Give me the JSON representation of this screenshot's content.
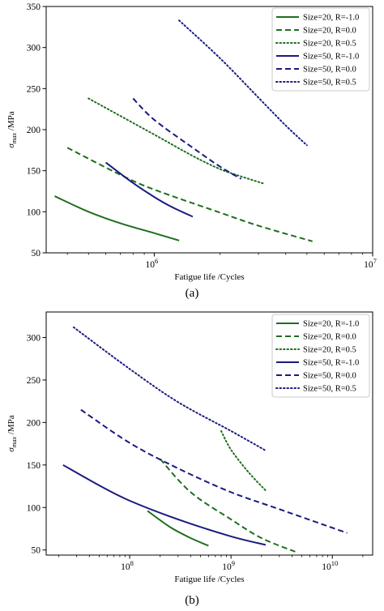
{
  "colors": {
    "green": "#1f6e1f",
    "navy": "#1a1a80"
  },
  "chart_data": [
    {
      "type": "line",
      "caption": "(a)",
      "xlabel": "Fatigue life /Cycles",
      "ylabel_main": "σ",
      "ylabel_sub": "max",
      "ylabel_unit": " /MPa",
      "xscale": "log",
      "xlim": [
        320000,
        10000000
      ],
      "ylim": [
        50,
        350
      ],
      "xticks": [
        {
          "v": 1000000,
          "base": "10",
          "exp": "6"
        },
        {
          "v": 10000000,
          "base": "10",
          "exp": "7"
        }
      ],
      "yticks": [
        50,
        100,
        150,
        200,
        250,
        300,
        350
      ],
      "legend": "top-right",
      "series": [
        {
          "name": "Size=20, R=-1.0",
          "color": "green",
          "style": "solid",
          "x": [
            350000,
            500000,
            700000,
            1000000,
            1300000
          ],
          "y": [
            119,
            100,
            86,
            74,
            65
          ]
        },
        {
          "name": "Size=20, R=0.0",
          "color": "green",
          "style": "dashed",
          "x": [
            400000,
            700000,
            1000000,
            2000000,
            3000000,
            5300000
          ],
          "y": [
            178,
            145,
            127,
            99,
            83,
            64
          ]
        },
        {
          "name": "Size=20, R=0.5",
          "color": "green",
          "style": "dotted",
          "x": [
            500000,
            1000000,
            1500000,
            2000000,
            2500000,
            3200000
          ],
          "y": [
            238,
            194,
            168,
            152,
            143,
            134
          ]
        },
        {
          "name": "Size=50, R=-1.0",
          "color": "navy",
          "style": "solid",
          "x": [
            600000,
            800000,
            1000000,
            1200000,
            1500000
          ],
          "y": [
            160,
            135,
            118,
            106,
            94
          ]
        },
        {
          "name": "Size=50, R=0.0",
          "color": "navy",
          "style": "dashed",
          "x": [
            800000,
            1000000,
            1500000,
            2000000,
            2500000
          ],
          "y": [
            238,
            212,
            178,
            155,
            140
          ]
        },
        {
          "name": "Size=50, R=0.5",
          "color": "navy",
          "style": "dotted",
          "x": [
            1300000,
            2000000,
            3000000,
            4000000,
            5000000
          ],
          "y": [
            333,
            287,
            239,
            205,
            181
          ]
        }
      ]
    },
    {
      "type": "line",
      "caption": "(b)",
      "xlabel": "Fatigue life /Cycles",
      "ylabel_main": "σ",
      "ylabel_sub": "max",
      "ylabel_unit": " /MPa",
      "xscale": "log",
      "xlim": [
        15000000,
        25000000000
      ],
      "ylim": [
        44,
        330
      ],
      "xticks": [
        {
          "v": 100000000,
          "base": "10",
          "exp": "8"
        },
        {
          "v": 1000000000,
          "base": "10",
          "exp": "9"
        },
        {
          "v": 10000000000,
          "base": "10",
          "exp": "10"
        }
      ],
      "yticks": [
        50,
        100,
        150,
        200,
        250,
        300
      ],
      "legend": "top-right",
      "series": [
        {
          "name": "Size=20, R=-1.0",
          "color": "green",
          "style": "solid",
          "x": [
            150000000,
            250000000,
            400000000,
            600000000
          ],
          "y": [
            96,
            77,
            64,
            55
          ]
        },
        {
          "name": "Size=20, R=0.0",
          "color": "green",
          "style": "dashed",
          "x": [
            200000000,
            400000000,
            1000000000,
            2000000000,
            4300000000
          ],
          "y": [
            157,
            118,
            86,
            64,
            48
          ]
        },
        {
          "name": "Size=20, R=0.5",
          "color": "green",
          "style": "dotted",
          "x": [
            800000000,
            1000000000,
            1500000000,
            2200000000
          ],
          "y": [
            190,
            168,
            141,
            120
          ]
        },
        {
          "name": "Size=50, R=-1.0",
          "color": "navy",
          "style": "solid",
          "x": [
            22000000,
            50000000,
            100000000,
            300000000,
            1000000000,
            2200000000
          ],
          "y": [
            150,
            126,
            108,
            86,
            66,
            56
          ]
        },
        {
          "name": "Size=50, R=0.0",
          "color": "navy",
          "style": "dashed",
          "x": [
            33000000,
            100000000,
            300000000,
            1000000000,
            3000000000,
            14000000000
          ],
          "y": [
            215,
            176,
            146,
            118,
            98,
            70
          ]
        },
        {
          "name": "Size=50, R=0.5",
          "color": "navy",
          "style": "dotted",
          "x": [
            28000000,
            100000000,
            300000000,
            1000000000,
            2200000000
          ],
          "y": [
            312,
            263,
            224,
            190,
            167
          ]
        }
      ]
    }
  ]
}
